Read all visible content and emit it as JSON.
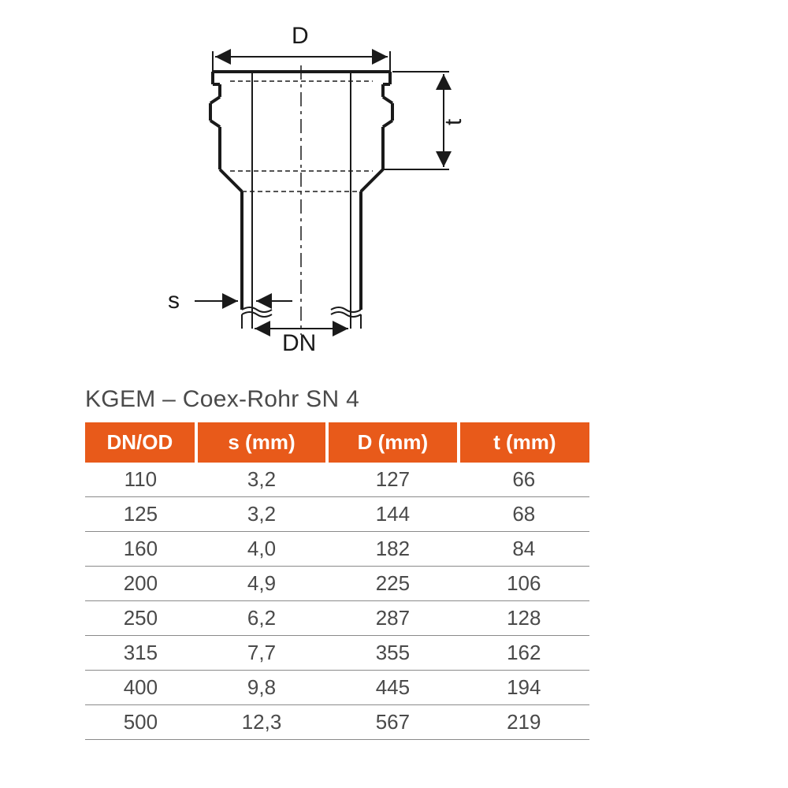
{
  "diagram": {
    "labels": {
      "D": "D",
      "t": "t",
      "s": "s",
      "DN": "DN"
    },
    "stroke": "#1a1a1a",
    "stroke_width_heavy": 4,
    "stroke_width_light": 2
  },
  "table": {
    "title": "KGEM – Coex-Rohr SN 4",
    "header_bg": "#e85a1a",
    "header_fg": "#ffffff",
    "cell_fg": "#4a4a4a",
    "row_border": "#8a8a8a",
    "title_fontsize": 30,
    "header_fontsize": 26,
    "cell_fontsize": 26,
    "columns": [
      "DN/OD",
      "s (mm)",
      "D (mm)",
      "t (mm)"
    ],
    "col_widths_pct": [
      22,
      26,
      26,
      26
    ],
    "rows": [
      [
        "110",
        "3,2",
        "127",
        "66"
      ],
      [
        "125",
        "3,2",
        "144",
        "68"
      ],
      [
        "160",
        "4,0",
        "182",
        "84"
      ],
      [
        "200",
        "4,9",
        "225",
        "106"
      ],
      [
        "250",
        "6,2",
        "287",
        "128"
      ],
      [
        "315",
        "7,7",
        "355",
        "162"
      ],
      [
        "400",
        "9,8",
        "445",
        "194"
      ],
      [
        "500",
        "12,3",
        "567",
        "219"
      ]
    ]
  }
}
